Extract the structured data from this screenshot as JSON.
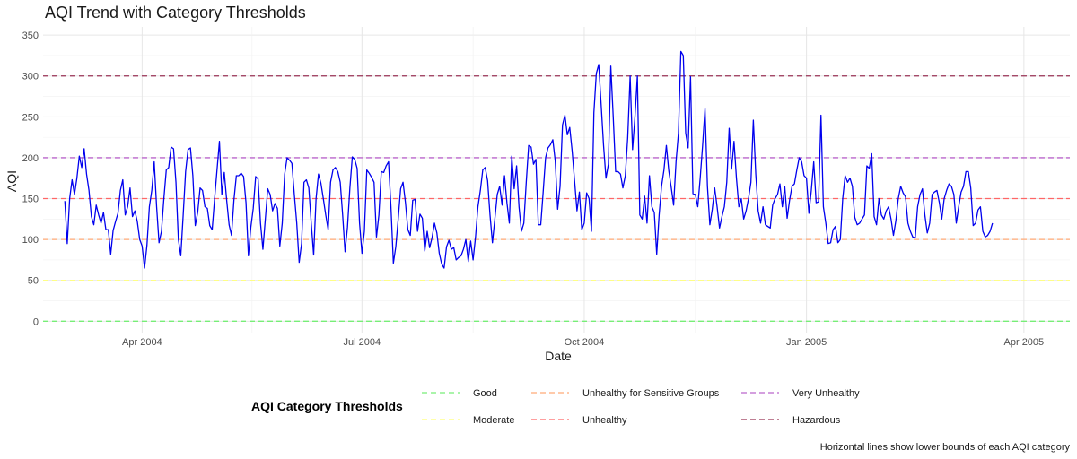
{
  "chart_data": {
    "type": "line",
    "title": "AQI Trend with Category Thresholds",
    "xlabel": "Date",
    "ylabel": "AQI",
    "ylim": [
      -15,
      360
    ],
    "yticks": [
      0,
      50,
      100,
      150,
      200,
      250,
      300,
      350
    ],
    "x_start": "2004-02-29",
    "x_step_days": 1,
    "xlim": [
      "2004-02-20",
      "2005-04-20"
    ],
    "xticks": [
      {
        "date": "2004-04-01",
        "label": "Apr 2004"
      },
      {
        "date": "2004-07-01",
        "label": "Jul 2004"
      },
      {
        "date": "2004-10-01",
        "label": "Oct 2004"
      },
      {
        "date": "2005-01-01",
        "label": "Jan 2005"
      },
      {
        "date": "2005-04-01",
        "label": "Apr 2005"
      }
    ],
    "series": [
      {
        "name": "AQI",
        "color": "#0000ee",
        "values": [
          147,
          95,
          150,
          173,
          155,
          175,
          202,
          188,
          211,
          180,
          160,
          128,
          118,
          142,
          130,
          120,
          133,
          112,
          112,
          82,
          111,
          122,
          132,
          160,
          173,
          130,
          140,
          163,
          128,
          135,
          122,
          100,
          92,
          65,
          93,
          140,
          160,
          195,
          140,
          96,
          110,
          150,
          185,
          188,
          213,
          211,
          170,
          100,
          80,
          130,
          183,
          210,
          212,
          178,
          117,
          133,
          163,
          160,
          140,
          138,
          117,
          112,
          150,
          185,
          220,
          155,
          182,
          148,
          118,
          105,
          148,
          178,
          178,
          181,
          177,
          145,
          80,
          115,
          138,
          177,
          174,
          120,
          88,
          125,
          162,
          155,
          135,
          144,
          138,
          92,
          120,
          180,
          200,
          197,
          193,
          155,
          120,
          72,
          95,
          170,
          173,
          163,
          120,
          81,
          150,
          180,
          169,
          150,
          130,
          112,
          170,
          185,
          188,
          183,
          170,
          130,
          85,
          115,
          163,
          201,
          198,
          187,
          120,
          83,
          110,
          185,
          181,
          176,
          170,
          103,
          130,
          183,
          182,
          190,
          195,
          140,
          71,
          91,
          125,
          162,
          170,
          145,
          112,
          105,
          148,
          149,
          110,
          131,
          126,
          86,
          110,
          90,
          102,
          120,
          108,
          83,
          70,
          65,
          91,
          99,
          88,
          90,
          75,
          78,
          80,
          88,
          100,
          73,
          98,
          75,
          103,
          140,
          160,
          185,
          188,
          172,
          130,
          96,
          125,
          155,
          165,
          142,
          178,
          145,
          120,
          202,
          162,
          190,
          140,
          110,
          120,
          170,
          215,
          213,
          192,
          198,
          118,
          118,
          158,
          200,
          212,
          216,
          222,
          196,
          137,
          165,
          240,
          252,
          228,
          237,
          208,
          172,
          135,
          158,
          112,
          120,
          157,
          150,
          110,
          255,
          303,
          314,
          265,
          215,
          175,
          192,
          312,
          250,
          183,
          183,
          180,
          163,
          178,
          225,
          300,
          210,
          250,
          300,
          130,
          125,
          153,
          120,
          178,
          140,
          133,
          82,
          130,
          165,
          185,
          215,
          184,
          164,
          142,
          195,
          230,
          330,
          325,
          230,
          212,
          299,
          156,
          155,
          140,
          175,
          215,
          260,
          165,
          118,
          137,
          163,
          140,
          114,
          128,
          140,
          170,
          236,
          186,
          220,
          175,
          140,
          150,
          125,
          135,
          150,
          170,
          246,
          180,
          135,
          120,
          140,
          118,
          116,
          114,
          142,
          150,
          155,
          168,
          140,
          165,
          126,
          148,
          165,
          168,
          185,
          200,
          195,
          178,
          175,
          132,
          160,
          195,
          145,
          146,
          252,
          140,
          120,
          95,
          96,
          112,
          116,
          96,
          100,
          150,
          178,
          170,
          175,
          165,
          127,
          118,
          120,
          125,
          130,
          190,
          187,
          205,
          128,
          118,
          150,
          130,
          125,
          135,
          140,
          125,
          105,
          123,
          150,
          165,
          157,
          152,
          120,
          110,
          103,
          102,
          140,
          155,
          162,
          130,
          108,
          120,
          155,
          158,
          160,
          145,
          125,
          150,
          160,
          168,
          165,
          155,
          120,
          140,
          158,
          165,
          183,
          183,
          163,
          117,
          120,
          136,
          140,
          110,
          103,
          105,
          110,
          120
        ]
      }
    ],
    "thresholds": [
      {
        "name": "Good",
        "value": 0,
        "color": "#77ee77"
      },
      {
        "name": "Moderate",
        "value": 50,
        "color": "#ffff77"
      },
      {
        "name": "Unhealthy for Sensitive Groups",
        "value": 100,
        "color": "#ffaa77"
      },
      {
        "name": "Unhealthy",
        "value": 150,
        "color": "#ff6666"
      },
      {
        "name": "Very Unhealthy",
        "value": 200,
        "color": "#bb66cc"
      },
      {
        "name": "Hazardous",
        "value": 300,
        "color": "#993355"
      }
    ],
    "legend": {
      "title": "AQI Category Thresholds",
      "position": "bottom",
      "order": [
        "Good",
        "Moderate",
        "Unhealthy for Sensitive Groups",
        "Unhealthy",
        "Very Unhealthy",
        "Hazardous"
      ]
    },
    "caption": "Horizontal lines show lower bounds of each AQI category",
    "grid": true
  }
}
